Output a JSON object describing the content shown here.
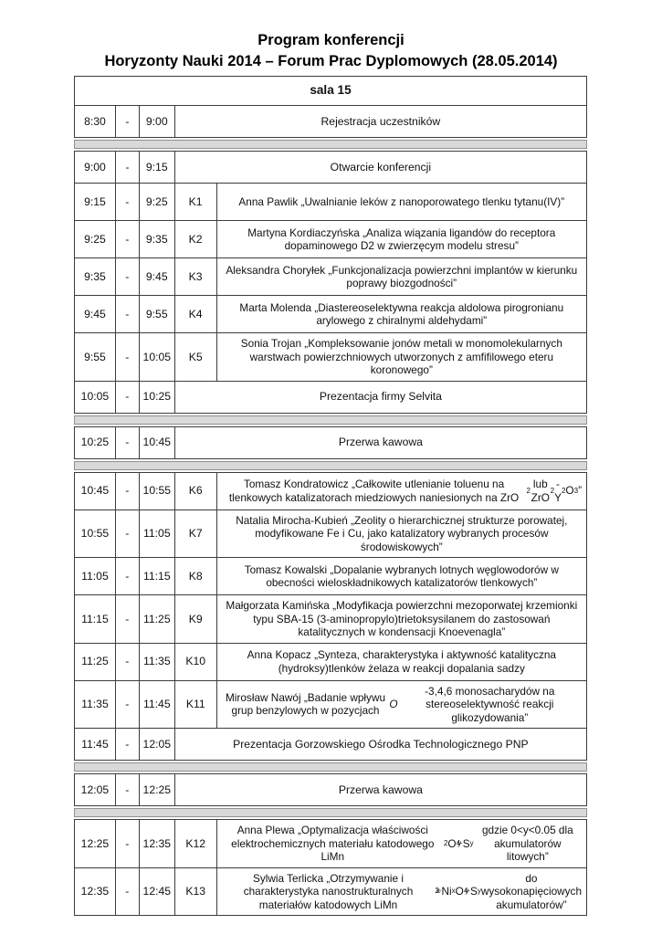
{
  "title": {
    "line1": "Program konferencji",
    "line2": "Horyzonty Nauki 2014 – Forum Prac Dyplomowych (28.05.2014)"
  },
  "colors": {
    "border": "#3c3c3c",
    "separator_fill": "#d9d9d9",
    "separator_border": "#8f8f8f"
  },
  "schedule": {
    "dash": "-",
    "sections": [
      {
        "type": "table",
        "rows": [
          {
            "kind": "header",
            "label": "sala 15"
          },
          {
            "kind": "plenary",
            "start": "8:30",
            "end": "9:00",
            "text": "Rejestracja uczestników"
          }
        ]
      },
      {
        "type": "separator"
      },
      {
        "type": "table",
        "rows": [
          {
            "kind": "plenary",
            "start": "9:00",
            "end": "9:15",
            "text": "Otwarcie konferencji"
          },
          {
            "kind": "session",
            "start": "9:15",
            "end": "9:25",
            "code": "K1",
            "text": "Anna Pawlik „Uwalnianie leków z nanoporowatego tlenku tytanu(IV)”"
          },
          {
            "kind": "session",
            "start": "9:25",
            "end": "9:35",
            "code": "K2",
            "text": "Martyna Kordiaczyńska „Analiza wiązania ligandów do receptora dopaminowego D2 w zwierzęcym modelu stresu”"
          },
          {
            "kind": "session",
            "start": "9:35",
            "end": "9:45",
            "code": "K3",
            "text": "Aleksandra Choryłek „Funkcjonalizacja powierzchni implantów w kierunku poprawy biozgodności”"
          },
          {
            "kind": "session",
            "start": "9:45",
            "end": "9:55",
            "code": "K4",
            "text": "Marta Molenda „Diastereoselektywna reakcja aldolowa pirogronianu arylowego z chiralnymi aldehydami”"
          },
          {
            "kind": "session",
            "start": "9:55",
            "end": "10:05",
            "code": "K5",
            "text": "Sonia Trojan „Kompleksowanie jonów metali w monomolekularnych warstwach powierzchniowych utworzonych z amfifilowego eteru koronowego”"
          },
          {
            "kind": "plenary",
            "start": "10:05",
            "end": "10:25",
            "text": "Prezentacja firmy Selvita"
          }
        ]
      },
      {
        "type": "separator"
      },
      {
        "type": "table",
        "rows": [
          {
            "kind": "plenary",
            "start": "10:25",
            "end": "10:45",
            "text": "Przerwa kawowa"
          }
        ]
      },
      {
        "type": "separator"
      },
      {
        "type": "table",
        "rows": [
          {
            "kind": "session",
            "start": "10:45",
            "end": "10:55",
            "code": "K6",
            "text": "Tomasz Kondratowicz „Całkowite utlenianie toluenu na tlenkowych katalizatorach miedziowych naniesionych na ZrO<sub>2</sub> lub ZrO<sub>2</sub>-Y<sub>2</sub>O<sub>3</sub>”"
          },
          {
            "kind": "session",
            "start": "10:55",
            "end": "11:05",
            "code": "K7",
            "text": "Natalia Mirocha-Kubień „Zeolity o hierarchicznej strukturze porowatej, modyfikowane Fe i Cu, jako katalizatory wybranych procesów środowiskowych”"
          },
          {
            "kind": "session",
            "start": "11:05",
            "end": "11:15",
            "code": "K8",
            "text": "Tomasz Kowalski „Dopalanie wybranych lotnych węglowodorów w obecności wieloskładnikowych katalizatorów tlenkowych”"
          },
          {
            "kind": "session",
            "start": "11:15",
            "end": "11:25",
            "code": "K9",
            "text": "Małgorzata Kamińska „Modyfikacja powierzchni mezoporwatej krzemionki typu SBA-15 (3-aminopropylo)trietoksysilanem do zastosowań katalitycznych w kondensacji Knoevenagla”"
          },
          {
            "kind": "session",
            "start": "11:25",
            "end": "11:35",
            "code": "K10",
            "text": "Anna Kopacz „Synteza, charakterystyka i aktywność katalityczna (hydroksy)tlenków żelaza w reakcji dopalania sadzy"
          },
          {
            "kind": "session",
            "start": "11:35",
            "end": "11:45",
            "code": "K11",
            "text": "Mirosław Nawój „Badanie wpływu grup benzylowych w pozycjach <i>O</i>-3,4,6 monosacharydów na stereoselektywność reakcji glikozydowania”"
          },
          {
            "kind": "plenary",
            "start": "11:45",
            "end": "12:05",
            "text": "Prezentacja Gorzowskiego Ośrodka Technologicznego PNP"
          }
        ]
      },
      {
        "type": "separator"
      },
      {
        "type": "table",
        "rows": [
          {
            "kind": "plenary",
            "start": "12:05",
            "end": "12:25",
            "text": "Przerwa kawowa"
          }
        ]
      },
      {
        "type": "separator"
      },
      {
        "type": "table",
        "rows": [
          {
            "kind": "session",
            "start": "12:25",
            "end": "12:35",
            "code": "K12",
            "text": "Anna Plewa „Optymalizacja właściwości elektrochemicznych materiału katodowego LiMn<sub>2</sub>O<sub>4-y</sub>S<sub>y</sub> gdzie 0&lt;y&lt;0.05 dla akumulatorów litowych”"
          },
          {
            "kind": "session",
            "start": "12:35",
            "end": "12:45",
            "code": "K13",
            "text": "Sylwia Terlicka „Otrzymywanie i charakterystyka nanostrukturalnych materiałów katodowych LiMn<sub>2-x</sub>Ni<sub>x</sub>O<sub>4-y</sub>S<sub>y</sub> do wysokonapięciowych akumulatorów”"
          }
        ]
      }
    ]
  }
}
